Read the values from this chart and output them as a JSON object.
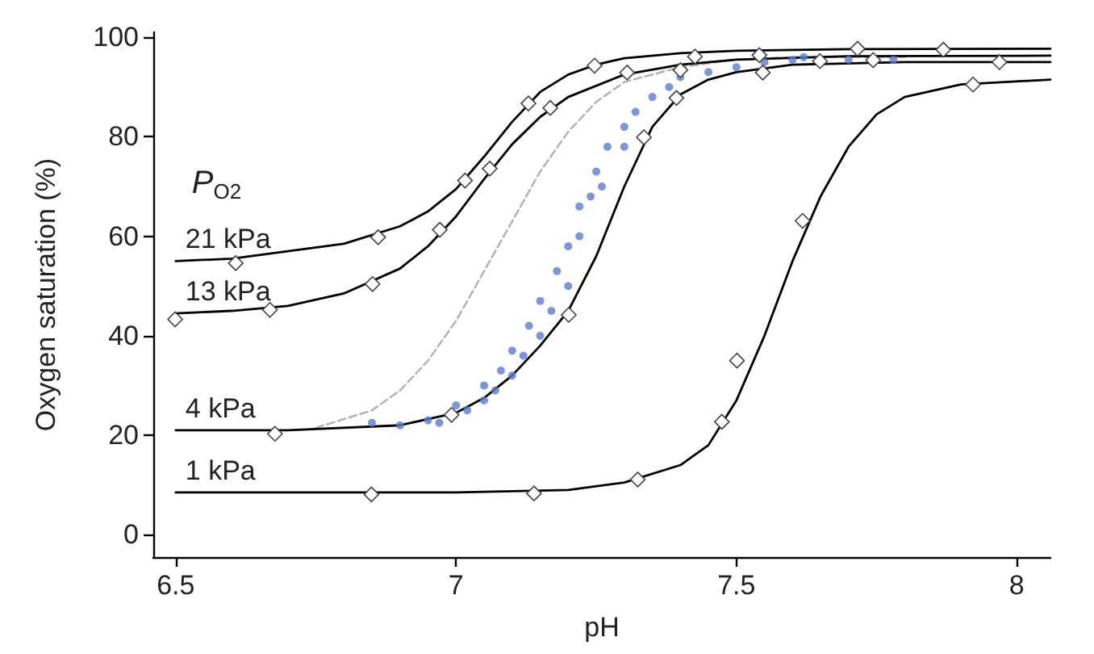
{
  "chart_data": {
    "type": "line",
    "xlabel": "pH",
    "ylabel": "Oxygen saturation (%)",
    "legend_title": "P$_{O2}$",
    "legend": false,
    "grid": false,
    "xlim": [
      6.46,
      8.06
    ],
    "xticks": [
      6.5,
      7.0,
      7.5,
      8.0
    ],
    "ylim": [
      -4.5,
      101
    ],
    "yticks": [
      0,
      20,
      40,
      60,
      80,
      100
    ],
    "series": [
      {
        "type": "scatter",
        "color": "#5b7ccc",
        "marker": "circle",
        "x": [
          6.85,
          6.9,
          6.95,
          6.97,
          7.0,
          7.02,
          7.05,
          7.05,
          7.07,
          7.08,
          7.1,
          7.1,
          7.12,
          7.13,
          7.15,
          7.15,
          7.17,
          7.18,
          7.2,
          7.2,
          7.22,
          7.22,
          7.24,
          7.25,
          7.26,
          7.27,
          7.3,
          7.3,
          7.32,
          7.35,
          7.38,
          7.4,
          7.45,
          7.5,
          7.55,
          7.6,
          7.62,
          7.7,
          7.78
        ],
        "values": [
          22.5,
          22,
          23,
          22.5,
          26,
          25,
          27,
          30,
          29,
          33,
          32,
          37,
          36,
          42,
          40,
          47,
          45,
          53,
          50,
          58,
          60,
          66,
          68,
          73,
          70,
          78,
          82,
          78,
          85,
          88,
          90,
          92,
          93,
          94,
          95,
          95.5,
          96,
          95.5,
          95.5
        ]
      },
      {
        "color": "#b0b0b0",
        "line_style": "dashed",
        "marker": "none",
        "x": [
          6.75,
          6.85,
          6.9,
          6.95,
          7.0,
          7.05,
          7.1,
          7.15,
          7.2,
          7.25,
          7.3,
          7.4,
          7.5,
          7.6,
          7.8
        ],
        "values": [
          21.5,
          25,
          29,
          35,
          43,
          53,
          63,
          73,
          81,
          87,
          91,
          94,
          95.5,
          96,
          96
        ]
      },
      {
        "name": "21 kPa",
        "color": "#000000",
        "line_style": "solid",
        "marker": "none",
        "x": [
          6.5,
          6.6,
          6.7,
          6.8,
          6.9,
          6.95,
          7.0,
          7.05,
          7.1,
          7.15,
          7.2,
          7.25,
          7.3,
          7.4,
          7.5,
          7.7,
          8.06
        ],
        "values": [
          55,
          55.5,
          57,
          58.5,
          62,
          65,
          69.5,
          76,
          83,
          89,
          92.5,
          94.5,
          95.8,
          96.8,
          97.3,
          97.6,
          97.7
        ]
      },
      {
        "name": "13 kPa",
        "color": "#000000",
        "line_style": "solid",
        "marker": "none",
        "x": [
          6.5,
          6.6,
          6.7,
          6.8,
          6.9,
          6.95,
          7.0,
          7.05,
          7.1,
          7.15,
          7.2,
          7.3,
          7.4,
          7.5,
          7.7,
          8.06
        ],
        "values": [
          44.5,
          45,
          46,
          48.5,
          53.5,
          58,
          64,
          71.5,
          78.5,
          84,
          88,
          92.5,
          94.5,
          95.5,
          96.2,
          96.3
        ]
      },
      {
        "name": "4 kPa",
        "color": "#000000",
        "line_style": "solid",
        "marker": "none",
        "x": [
          6.5,
          6.7,
          6.9,
          7.0,
          7.05,
          7.1,
          7.15,
          7.2,
          7.25,
          7.3,
          7.35,
          7.4,
          7.45,
          7.5,
          7.6,
          7.8,
          8.06
        ],
        "values": [
          21,
          21,
          22,
          24.5,
          27.5,
          32,
          38,
          45,
          56,
          70,
          82,
          88.5,
          91.5,
          93,
          94.5,
          95,
          95
        ]
      },
      {
        "name": "1 kPa",
        "color": "#000000",
        "line_style": "solid",
        "marker": "none",
        "x": [
          6.5,
          7.0,
          7.2,
          7.3,
          7.4,
          7.45,
          7.5,
          7.55,
          7.6,
          7.65,
          7.7,
          7.75,
          7.8,
          7.9,
          8.06
        ],
        "values": [
          8.5,
          8.5,
          9,
          10.5,
          14,
          18,
          27,
          40,
          55,
          68,
          78,
          84.5,
          88,
          90.5,
          91.5
        ]
      },
      {
        "type": "scatter",
        "color": "#ffffff",
        "marker": "diamond",
        "x": [
          6.607,
          6.861,
          7.016,
          7.129,
          7.247,
          7.426,
          7.541,
          7.716,
          7.869
        ],
        "values": [
          54.6,
          59.8,
          71.2,
          86.7,
          94.3,
          96.1,
          96.4,
          97.7,
          97.5
        ]
      },
      {
        "type": "scatter",
        "color": "#ffffff",
        "marker": "diamond",
        "x": [
          6.499,
          6.668,
          6.851,
          6.971,
          7.06,
          7.168,
          7.305,
          7.4,
          7.649,
          7.744,
          7.969
        ],
        "values": [
          43.3,
          45.2,
          50.4,
          61.3,
          73.6,
          85.8,
          92.9,
          93.4,
          95.2,
          95.4,
          95.0
        ]
      },
      {
        "type": "scatter",
        "color": "#ffffff",
        "marker": "diamond",
        "x": [
          6.677,
          6.992,
          7.201,
          7.335,
          7.393,
          7.547
        ],
        "values": [
          20.3,
          24.1,
          44.2,
          79.9,
          87.8,
          92.9
        ]
      },
      {
        "type": "scatter",
        "color": "#ffffff",
        "marker": "diamond",
        "x": [
          6.849,
          7.139,
          7.324,
          7.474,
          7.501,
          7.618,
          7.922
        ],
        "values": [
          8.1,
          8.3,
          11.1,
          22.7,
          35.0,
          63.1,
          90.5
        ]
      }
    ]
  }
}
